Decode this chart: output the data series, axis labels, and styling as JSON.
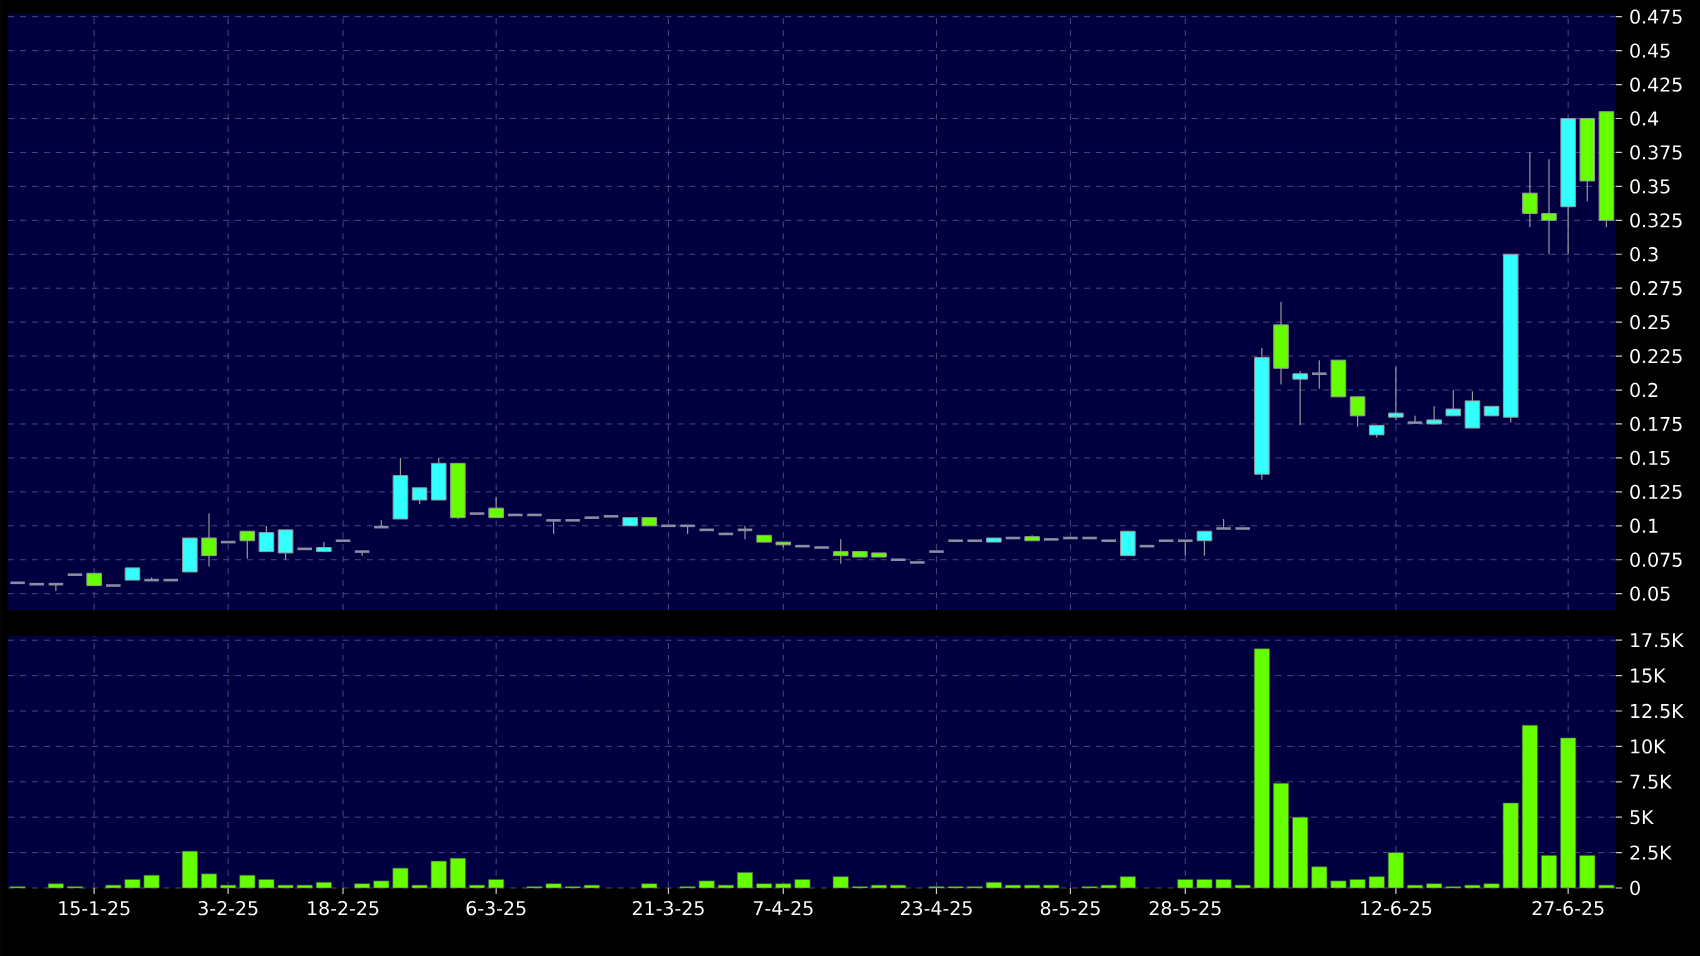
{
  "chart_data": [
    {
      "type": "candlestick",
      "tick_labels": "y",
      "grid": true,
      "ylim": [
        0.038,
        0.477
      ],
      "yticks": [
        0.05,
        0.075,
        0.1,
        0.125,
        0.15,
        0.175,
        0.2,
        0.225,
        0.25,
        0.275,
        0.3,
        0.325,
        0.35,
        0.375,
        0.4,
        0.425,
        0.45,
        0.475
      ],
      "categories": [
        null,
        null,
        null,
        null,
        null,
        null,
        null,
        null,
        null,
        null,
        null,
        null,
        null,
        null,
        null,
        null,
        null,
        null,
        null,
        null,
        null,
        null,
        null,
        null,
        null,
        null,
        null,
        null,
        null,
        null,
        null,
        null,
        null,
        null,
        null,
        null,
        null,
        null,
        null,
        null,
        null,
        null,
        null,
        null,
        null,
        null,
        null,
        null,
        null,
        null,
        null,
        null,
        null,
        null,
        null,
        null,
        null,
        null,
        null,
        null,
        null,
        null,
        null,
        null,
        null,
        null,
        null,
        null,
        null,
        null,
        null,
        null,
        null,
        null,
        null,
        null,
        null,
        null,
        null,
        null,
        null,
        null,
        null,
        null
      ],
      "ohlc": [
        [
          0.058,
          0.058,
          0.058,
          0.058
        ],
        [
          0.057,
          0.057,
          0.057,
          0.057
        ],
        [
          0.057,
          0.057,
          0.052,
          0.057
        ],
        [
          0.064,
          0.064,
          0.064,
          0.064
        ],
        [
          0.065,
          0.065,
          0.056,
          0.056
        ],
        [
          0.056,
          0.056,
          0.056,
          0.056
        ],
        [
          0.06,
          0.069,
          0.06,
          0.069
        ],
        [
          0.06,
          0.062,
          0.06,
          0.06
        ],
        [
          0.06,
          0.06,
          0.06,
          0.06
        ],
        [
          0.066,
          0.091,
          0.066,
          0.091
        ],
        [
          0.091,
          0.109,
          0.07,
          0.078
        ],
        [
          0.088,
          0.088,
          0.088,
          0.088
        ],
        [
          0.096,
          0.096,
          0.076,
          0.089
        ],
        [
          0.081,
          0.1,
          0.081,
          0.095
        ],
        [
          0.08,
          0.097,
          0.075,
          0.097
        ],
        [
          0.083,
          0.083,
          0.083,
          0.083
        ],
        [
          0.081,
          0.088,
          0.081,
          0.084
        ],
        [
          0.089,
          0.089,
          0.089,
          0.089
        ],
        [
          0.081,
          0.081,
          0.078,
          0.081
        ],
        [
          0.099,
          0.104,
          0.099,
          0.099
        ],
        [
          0.105,
          0.15,
          0.105,
          0.137
        ],
        [
          0.119,
          0.128,
          0.116,
          0.128
        ],
        [
          0.119,
          0.15,
          0.119,
          0.146
        ],
        [
          0.146,
          0.146,
          0.105,
          0.106
        ],
        [
          0.109,
          0.109,
          0.109,
          0.109
        ],
        [
          0.113,
          0.121,
          0.106,
          0.106
        ],
        [
          0.108,
          0.108,
          0.108,
          0.108
        ],
        [
          0.108,
          0.108,
          0.108,
          0.108
        ],
        [
          0.104,
          0.104,
          0.094,
          0.104
        ],
        [
          0.104,
          0.104,
          0.104,
          0.104
        ],
        [
          0.106,
          0.106,
          0.106,
          0.106
        ],
        [
          0.107,
          0.107,
          0.107,
          0.107
        ],
        [
          0.1,
          0.106,
          0.1,
          0.106
        ],
        [
          0.106,
          0.106,
          0.1,
          0.1
        ],
        [
          0.1,
          0.1,
          0.1,
          0.1
        ],
        [
          0.1,
          0.1,
          0.094,
          0.1
        ],
        [
          0.097,
          0.097,
          0.097,
          0.097
        ],
        [
          0.094,
          0.095,
          0.094,
          0.094
        ],
        [
          0.097,
          0.1,
          0.09,
          0.097
        ],
        [
          0.093,
          0.093,
          0.088,
          0.088
        ],
        [
          0.088,
          0.088,
          0.084,
          0.086
        ],
        [
          0.085,
          0.085,
          0.085,
          0.085
        ],
        [
          0.084,
          0.084,
          0.084,
          0.084
        ],
        [
          0.081,
          0.09,
          0.072,
          0.078
        ],
        [
          0.081,
          0.081,
          0.077,
          0.077
        ],
        [
          0.08,
          0.08,
          0.077,
          0.077
        ],
        [
          0.075,
          0.075,
          0.075,
          0.075
        ],
        [
          0.073,
          0.073,
          0.073,
          0.073
        ],
        [
          0.081,
          0.081,
          0.081,
          0.081
        ],
        [
          0.089,
          0.089,
          0.089,
          0.089
        ],
        [
          0.089,
          0.089,
          0.089,
          0.089
        ],
        [
          0.088,
          0.091,
          0.088,
          0.091
        ],
        [
          0.091,
          0.091,
          0.091,
          0.091
        ],
        [
          0.092,
          0.093,
          0.089,
          0.089
        ],
        [
          0.09,
          0.09,
          0.09,
          0.09
        ],
        [
          0.091,
          0.091,
          0.091,
          0.091
        ],
        [
          0.091,
          0.091,
          0.091,
          0.091
        ],
        [
          0.089,
          0.089,
          0.089,
          0.089
        ],
        [
          0.078,
          0.096,
          0.078,
          0.096
        ],
        [
          0.085,
          0.085,
          0.085,
          0.085
        ],
        [
          0.089,
          0.089,
          0.089,
          0.089
        ],
        [
          0.089,
          0.089,
          0.078,
          0.089
        ],
        [
          0.089,
          0.096,
          0.078,
          0.096
        ],
        [
          0.098,
          0.105,
          0.098,
          0.098
        ],
        [
          0.098,
          0.098,
          0.098,
          0.098
        ],
        [
          0.138,
          0.231,
          0.134,
          0.224
        ],
        [
          0.248,
          0.265,
          0.204,
          0.216
        ],
        [
          0.208,
          0.214,
          0.174,
          0.212
        ],
        [
          0.212,
          0.222,
          0.201,
          0.212
        ],
        [
          0.222,
          0.222,
          0.195,
          0.195
        ],
        [
          0.195,
          0.195,
          0.173,
          0.181
        ],
        [
          0.167,
          0.174,
          0.165,
          0.174
        ],
        [
          0.18,
          0.217,
          0.178,
          0.183
        ],
        [
          0.176,
          0.181,
          0.176,
          0.176
        ],
        [
          0.175,
          0.188,
          0.175,
          0.178
        ],
        [
          0.181,
          0.2,
          0.181,
          0.186
        ],
        [
          0.172,
          0.199,
          0.172,
          0.192
        ],
        [
          0.181,
          0.188,
          0.181,
          0.188
        ],
        [
          0.18,
          0.3,
          0.176,
          0.3
        ],
        [
          0.345,
          0.375,
          0.32,
          0.33
        ],
        [
          0.33,
          0.37,
          0.3,
          0.325
        ],
        [
          0.335,
          0.4,
          0.3,
          0.4
        ],
        [
          0.4,
          0.4,
          0.339,
          0.354
        ],
        [
          0.405,
          0.405,
          0.32,
          0.325
        ]
      ],
      "colors": [
        "#8c8ca0",
        "#8c8ca0",
        "#8c8ca0",
        "#8c8ca0",
        "#66ff00",
        "#8c8ca0",
        "#33ffff",
        "#8c8ca0",
        "#8c8ca0",
        "#33ffff",
        "#66ff00",
        "#8c8ca0",
        "#66ff00",
        "#33ffff",
        "#33ffff",
        "#8c8ca0",
        "#33ffff",
        "#8c8ca0",
        "#8c8ca0",
        "#8c8ca0",
        "#33ffff",
        "#33ffff",
        "#33ffff",
        "#66ff00",
        "#8c8ca0",
        "#66ff00",
        "#8c8ca0",
        "#8c8ca0",
        "#8c8ca0",
        "#8c8ca0",
        "#8c8ca0",
        "#8c8ca0",
        "#33ffff",
        "#66ff00",
        "#8c8ca0",
        "#8c8ca0",
        "#8c8ca0",
        "#8c8ca0",
        "#8c8ca0",
        "#66ff00",
        "#66ff00",
        "#8c8ca0",
        "#8c8ca0",
        "#66ff00",
        "#66ff00",
        "#66ff00",
        "#8c8ca0",
        "#8c8ca0",
        "#8c8ca0",
        "#8c8ca0",
        "#8c8ca0",
        "#33ffff",
        "#8c8ca0",
        "#66ff00",
        "#8c8ca0",
        "#8c8ca0",
        "#8c8ca0",
        "#8c8ca0",
        "#33ffff",
        "#8c8ca0",
        "#8c8ca0",
        "#8c8ca0",
        "#33ffff",
        "#8c8ca0",
        "#8c8ca0",
        "#33ffff",
        "#66ff00",
        "#33ffff",
        "#8c8ca0",
        "#66ff00",
        "#66ff00",
        "#33ffff",
        "#33ffff",
        "#8c8ca0",
        "#33ffff",
        "#33ffff",
        "#33ffff",
        "#33ffff",
        "#33ffff",
        "#66ff00",
        "#66ff00",
        "#33ffff",
        "#66ff00",
        "#66ff00"
      ]
    },
    {
      "type": "bar",
      "grid": true,
      "color": "#66ff00",
      "ylim": [
        0,
        17800
      ],
      "yticks": [
        {
          "value": 0,
          "label": "0"
        },
        {
          "value": 2500,
          "label": "2.5K"
        },
        {
          "value": 5000,
          "label": "5K"
        },
        {
          "value": 7500,
          "label": "7.5K"
        },
        {
          "value": 10000,
          "label": "10K"
        },
        {
          "value": 12500,
          "label": "12.5K"
        },
        {
          "value": 15000,
          "label": "15K"
        },
        {
          "value": 17500,
          "label": "17.5K"
        }
      ],
      "categories": [
        null,
        null,
        null,
        null,
        "15-1-25",
        null,
        null,
        null,
        null,
        null,
        null,
        "3-2-25",
        null,
        null,
        null,
        null,
        null,
        "18-2-25",
        null,
        null,
        null,
        null,
        null,
        null,
        null,
        "6-3-25",
        null,
        null,
        null,
        null,
        null,
        null,
        null,
        null,
        "21-3-25",
        null,
        null,
        null,
        null,
        null,
        "7-4-25",
        null,
        null,
        null,
        null,
        null,
        null,
        null,
        "23-4-25",
        null,
        null,
        null,
        null,
        null,
        null,
        "8-5-25",
        null,
        null,
        null,
        null,
        null,
        "28-5-25",
        null,
        null,
        null,
        null,
        null,
        null,
        null,
        null,
        null,
        null,
        "12-6-25",
        null,
        null,
        null,
        null,
        null,
        null,
        null,
        null,
        "27-6-25",
        null,
        null
      ],
      "values": [
        100,
        null,
        300,
        100,
        null,
        200,
        600,
        900,
        null,
        2600,
        1000,
        200,
        900,
        600,
        200,
        200,
        400,
        null,
        300,
        500,
        1400,
        200,
        1900,
        2100,
        200,
        600,
        null,
        100,
        300,
        100,
        200,
        null,
        null,
        300,
        null,
        100,
        500,
        200,
        1100,
        300,
        300,
        600,
        null,
        800,
        100,
        200,
        200,
        null,
        100,
        100,
        100,
        400,
        200,
        200,
        200,
        null,
        100,
        200,
        800,
        null,
        null,
        600,
        600,
        600,
        200,
        16900,
        7400,
        5000,
        1500,
        500,
        600,
        800,
        2500,
        200,
        300,
        100,
        200,
        300,
        6000,
        11500,
        2300,
        10600,
        2300,
        200
      ]
    }
  ]
}
